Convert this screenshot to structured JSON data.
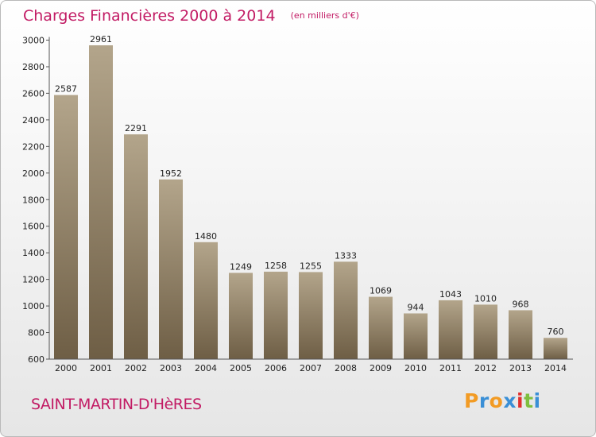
{
  "header": {
    "title": "Charges Financières 2000 à 2014",
    "unit": "(en milliers d'€)"
  },
  "footer": {
    "commune": "SAINT-MARTIN-D'HèRES",
    "logo": "Proxiti"
  },
  "colors": {
    "title": "#c21b64",
    "bar_top": "#b3a58b",
    "bar_bottom": "#6e5e45",
    "logo_letters": [
      "#f29b24",
      "#3a8fd6",
      "#f29b24",
      "#3a8fd6",
      "#e0302e",
      "#7fbf3f",
      "#3a8fd6"
    ]
  },
  "chart_data": {
    "type": "bar",
    "title": "Charges Financières 2000 à 2014",
    "subtitle": "(en milliers d'€)",
    "categories": [
      "2000",
      "2001",
      "2002",
      "2003",
      "2004",
      "2005",
      "2006",
      "2007",
      "2008",
      "2009",
      "2010",
      "2011",
      "2012",
      "2013",
      "2014"
    ],
    "values": [
      2587,
      2961,
      2291,
      1952,
      1480,
      1249,
      1258,
      1255,
      1333,
      1069,
      944,
      1043,
      1010,
      968,
      760
    ],
    "data_labels": [
      "2587",
      "2961",
      "2291",
      "1952",
      "1480",
      "1249",
      "1258",
      "1255",
      "1333",
      "1069",
      "944",
      "1043",
      "1010",
      "968",
      "760"
    ],
    "ylim": [
      600,
      3000
    ],
    "yticks": [
      "600",
      "800",
      "1000",
      "1200",
      "1400",
      "1600",
      "1800",
      "2000",
      "2200",
      "2400",
      "2600",
      "2800",
      "3000"
    ],
    "grid": false,
    "legend": "none"
  }
}
